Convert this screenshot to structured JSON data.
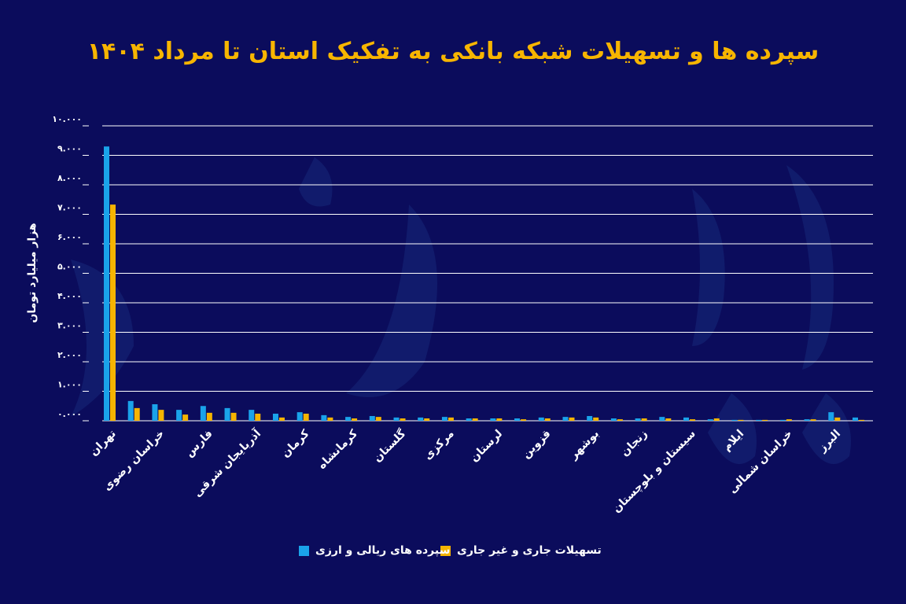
{
  "chart_data": {
    "type": "bar",
    "title": "سپرده ها و تسهیلات شبکه بانکی به تفکیک استان تا مرداد ۱۴۰۴",
    "ylabel": "هزار میلیارد تومان",
    "xlabel": "",
    "ylim": [
      0,
      10000
    ],
    "yticks": [
      0,
      1000,
      2000,
      3000,
      4000,
      5000,
      6000,
      7000,
      8000,
      9000,
      10000
    ],
    "ytick_labels": [
      "۰.۰۰۰",
      "۱.۰۰۰",
      "۲.۰۰۰",
      "۳.۰۰۰",
      "۴.۰۰۰",
      "۵.۰۰۰",
      "۶.۰۰۰",
      "۷.۰۰۰",
      "۸.۰۰۰",
      "۹.۰۰۰",
      "۱۰.۰۰۰"
    ],
    "grid": true,
    "legend_position": "bottom",
    "categories": [
      "تهران",
      "",
      "خراسان رضوی",
      "",
      "فارس",
      "",
      "آذربایجان شرقی",
      "",
      "کرمان",
      "",
      "کرمانشاه",
      "",
      "گلستان",
      "",
      "مرکزی",
      "",
      "لرستان",
      "",
      "قزوین",
      "",
      "بوشهر",
      "",
      "زنجان",
      "",
      "سیستان و بلوچستان",
      "",
      "ایلام",
      "",
      "خراسان شمالی",
      "",
      "البرز",
      ""
    ],
    "series": [
      {
        "name": "سپرده های ریالی و ارزی",
        "color": "#1aa3ea",
        "values": [
          9300,
          670,
          560,
          370,
          500,
          430,
          370,
          240,
          290,
          190,
          130,
          160,
          110,
          110,
          130,
          80,
          80,
          80,
          110,
          130,
          160,
          80,
          80,
          130,
          110,
          50,
          30,
          30,
          30,
          50,
          290,
          110
        ]
      },
      {
        "name": "تسهیلات جاری و غیر جاری",
        "color": "#f5b400",
        "values": [
          7330,
          430,
          370,
          210,
          270,
          270,
          240,
          110,
          240,
          110,
          80,
          130,
          80,
          80,
          110,
          80,
          80,
          50,
          80,
          110,
          110,
          50,
          80,
          80,
          50,
          80,
          30,
          30,
          50,
          50,
          110,
          30
        ]
      }
    ]
  },
  "colors": {
    "background": "#0b0c5c",
    "title": "#f7b500",
    "grid": "#ffffff"
  }
}
